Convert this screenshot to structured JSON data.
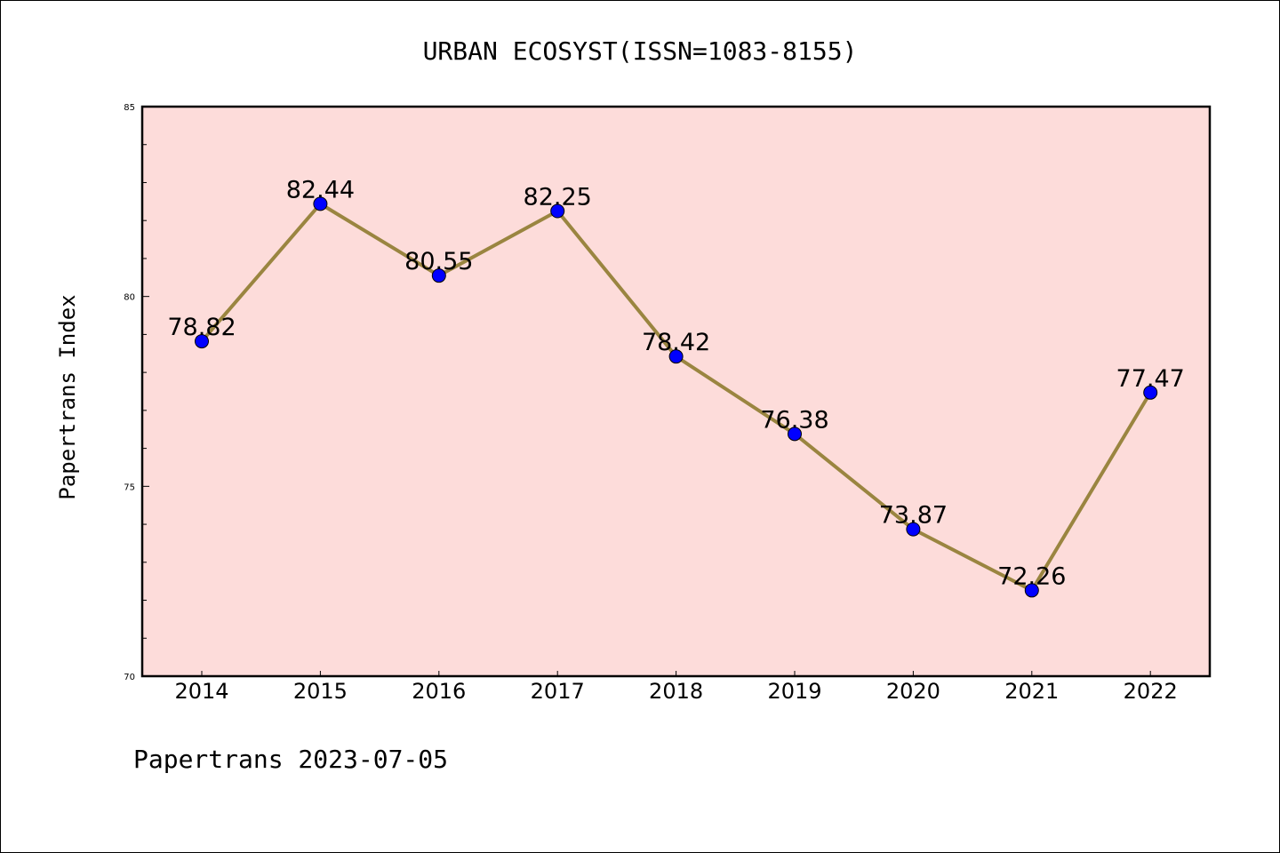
{
  "chart_data": {
    "type": "line",
    "title": "URBAN ECOSYST(ISSN=1083-8155)",
    "ylabel": "Papertrans Index",
    "xlabel": "",
    "categories": [
      "2014",
      "2015",
      "2016",
      "2017",
      "2018",
      "2019",
      "2020",
      "2021",
      "2022"
    ],
    "series": [
      {
        "values": [
          78.82,
          82.44,
          80.55,
          82.25,
          78.42,
          76.38,
          73.87,
          72.26,
          77.47
        ]
      }
    ],
    "data_labels": [
      "78.82",
      "82.44",
      "80.55",
      "82.25",
      "78.42",
      "76.38",
      "73.87",
      "72.26",
      "77.47"
    ],
    "ylim": [
      70,
      85
    ],
    "yticks": [
      "70",
      "75",
      "80",
      "85"
    ],
    "grid": false,
    "colors": {
      "plot_background": "#fddcda",
      "line": "#9a8540",
      "marker": "#0000ff"
    }
  },
  "footer": "Papertrans 2023-07-05"
}
